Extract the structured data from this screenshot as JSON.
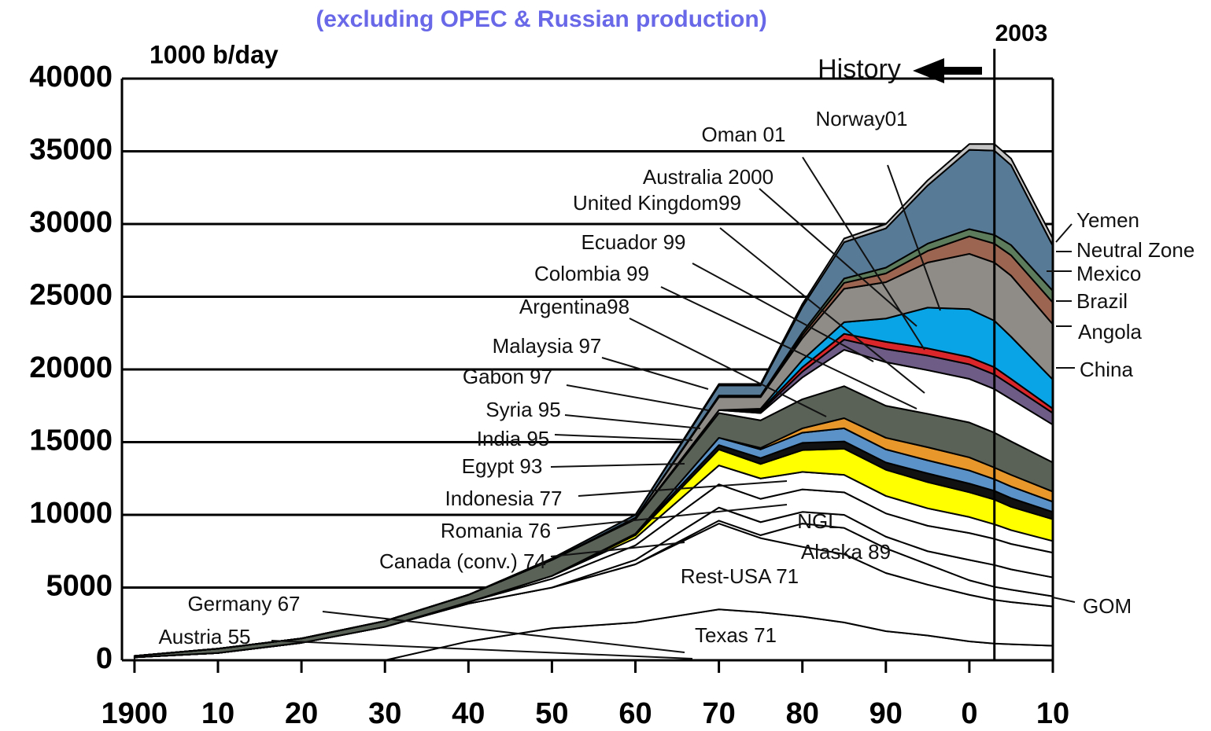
{
  "chart_data": {
    "type": "stacked_area",
    "title": "(excluding OPEC & Russian production)",
    "y_label": "1000 b/day",
    "x": [
      1900,
      1910,
      1920,
      1930,
      1940,
      1950,
      1960,
      1970,
      1975,
      1980,
      1985,
      1990,
      1995,
      2000,
      2003,
      2005,
      2010
    ],
    "xlim": [
      1898.5,
      2010
    ],
    "xticks": [
      {
        "value": 1900,
        "label": "1900"
      },
      {
        "value": 1910,
        "label": "10"
      },
      {
        "value": 1920,
        "label": "20"
      },
      {
        "value": 1930,
        "label": "30"
      },
      {
        "value": 1940,
        "label": "40"
      },
      {
        "value": 1950,
        "label": "50"
      },
      {
        "value": 1960,
        "label": "60"
      },
      {
        "value": 1970,
        "label": "70"
      },
      {
        "value": 1980,
        "label": "80"
      },
      {
        "value": 1990,
        "label": "90"
      },
      {
        "value": 2000,
        "label": "0"
      },
      {
        "value": 2010,
        "label": "10"
      }
    ],
    "ylim": [
      0,
      40000
    ],
    "yticks": [
      0,
      5000,
      10000,
      15000,
      20000,
      25000,
      30000,
      35000,
      40000
    ],
    "grid": true,
    "vline": {
      "x": 2003,
      "label": "2003"
    },
    "history_label": "History",
    "series": [
      {
        "color": "#ffffff",
        "values": [
          0,
          0,
          0,
          0,
          1300,
          2200,
          2600,
          3500,
          3300,
          3000,
          2600,
          2000,
          1700,
          1300,
          1150,
          1100,
          1000
        ]
      },
      {
        "color": "#ffffff",
        "values": [
          200,
          500,
          1200,
          2300,
          2600,
          2800,
          4000,
          5900,
          5100,
          4800,
          4700,
          4000,
          3500,
          3200,
          3000,
          2900,
          2700
        ]
      },
      {
        "color": "#ffffff",
        "values": [
          0,
          0,
          0,
          0,
          0,
          0,
          0,
          200,
          200,
          1600,
          1800,
          1700,
          1400,
          1000,
          900,
          850,
          700
        ]
      },
      {
        "color": "#ffffff",
        "values": [
          0,
          0,
          0,
          0,
          0,
          0,
          300,
          900,
          900,
          800,
          900,
          800,
          900,
          1400,
          1500,
          1400,
          1300
        ]
      },
      {
        "color": "#ffffff",
        "values": [
          0,
          0,
          0,
          0,
          100,
          600,
          1000,
          1600,
          1600,
          1550,
          1550,
          1600,
          1750,
          1850,
          1800,
          1750,
          1700
        ]
      },
      {
        "color": "#ffffff",
        "values": [
          0,
          0,
          0,
          0,
          0,
          200,
          500,
          1300,
          1400,
          1200,
          1200,
          1200,
          1200,
          1100,
          1000,
          950,
          800
        ]
      },
      {
        "color": "#ffff00",
        "values": [
          0,
          0,
          0,
          0,
          0,
          0,
          200,
          1100,
          1000,
          1500,
          1800,
          1800,
          1800,
          1700,
          1700,
          1600,
          1500
        ]
      },
      {
        "color": "#111111",
        "values": [
          0,
          0,
          0,
          0,
          0,
          0,
          100,
          300,
          400,
          500,
          500,
          500,
          600,
          600,
          600,
          600,
          500
        ]
      },
      {
        "color": "#5b93c8",
        "values": [
          0,
          0,
          0,
          0,
          0,
          0,
          0,
          500,
          600,
          700,
          900,
          900,
          900,
          900,
          800,
          800,
          700
        ]
      },
      {
        "color": "#e8982a",
        "values": [
          0,
          0,
          0,
          0,
          0,
          0,
          0,
          0,
          100,
          300,
          700,
          800,
          900,
          900,
          800,
          800,
          700
        ]
      },
      {
        "color": "#5a6258",
        "values": [
          100,
          300,
          300,
          400,
          500,
          1100,
          1000,
          1700,
          1900,
          2000,
          2200,
          2200,
          2300,
          2400,
          2400,
          2300,
          2000
        ]
      },
      {
        "color": "#ffffff",
        "values": [
          0,
          0,
          0,
          0,
          0,
          0,
          0,
          200,
          500,
          1500,
          2500,
          3000,
          3000,
          3000,
          3000,
          2900,
          2600
        ]
      },
      {
        "color": "#6e5c86",
        "values": [
          0,
          0,
          0,
          0,
          0,
          0,
          0,
          0,
          100,
          400,
          700,
          900,
          1000,
          1000,
          1000,
          950,
          800
        ]
      },
      {
        "color": "#d8262b",
        "values": [
          0,
          0,
          0,
          0,
          0,
          0,
          0,
          0,
          100,
          300,
          400,
          500,
          500,
          500,
          500,
          450,
          300
        ]
      },
      {
        "color": "#08a4e6",
        "values": [
          0,
          0,
          0,
          0,
          0,
          0,
          0,
          0,
          100,
          500,
          800,
          1600,
          2800,
          3300,
          3200,
          2900,
          2000
        ]
      },
      {
        "color": "#8f8c88",
        "values": [
          0,
          0,
          0,
          0,
          0,
          0,
          100,
          900,
          800,
          1500,
          2300,
          2500,
          3100,
          3800,
          4000,
          4200,
          3800
        ]
      },
      {
        "color": "#9b6551",
        "values": [
          0,
          0,
          0,
          0,
          0,
          0,
          0,
          0,
          0,
          200,
          400,
          600,
          800,
          1200,
          1300,
          1400,
          1500
        ]
      },
      {
        "color": "#5c7c5c",
        "values": [
          0,
          0,
          0,
          0,
          0,
          0,
          0,
          100,
          100,
          200,
          300,
          400,
          500,
          500,
          600,
          700,
          800
        ]
      },
      {
        "color": "#577a97",
        "values": [
          0,
          0,
          0,
          0,
          0,
          100,
          200,
          700,
          700,
          1750,
          2500,
          2700,
          4000,
          5450,
          5800,
          5500,
          3100
        ]
      },
      {
        "color": "#c4c4c4",
        "values": [
          0,
          0,
          0,
          0,
          0,
          0,
          0,
          100,
          100,
          200,
          250,
          300,
          350,
          400,
          450,
          450,
          500
        ]
      }
    ],
    "annotations": [
      {
        "text": "Norway01"
      },
      {
        "text": "Oman 01"
      },
      {
        "text": "Australia 2000"
      },
      {
        "text": "United Kingdom99"
      },
      {
        "text": "Ecuador 99"
      },
      {
        "text": "Colombia 99"
      },
      {
        "text": "Argentina98"
      },
      {
        "text": "Malaysia 97"
      },
      {
        "text": "Gabon 97"
      },
      {
        "text": "Syria 95"
      },
      {
        "text": "India 95"
      },
      {
        "text": "Egypt 93"
      },
      {
        "text": "Indonesia 77"
      },
      {
        "text": "Romania 76"
      },
      {
        "text": "Canada (conv.) 74"
      },
      {
        "text": "NGL"
      },
      {
        "text": "Alaska 89"
      },
      {
        "text": "Rest-USA 71"
      },
      {
        "text": "Germany 67"
      },
      {
        "text": "Austria 55"
      },
      {
        "text": "Texas 71"
      },
      {
        "text": "Yemen"
      },
      {
        "text": "Neutral Zone"
      },
      {
        "text": "Mexico"
      },
      {
        "text": "Brazil"
      },
      {
        "text": "Angola"
      },
      {
        "text": "China"
      },
      {
        "text": "GOM"
      }
    ]
  }
}
